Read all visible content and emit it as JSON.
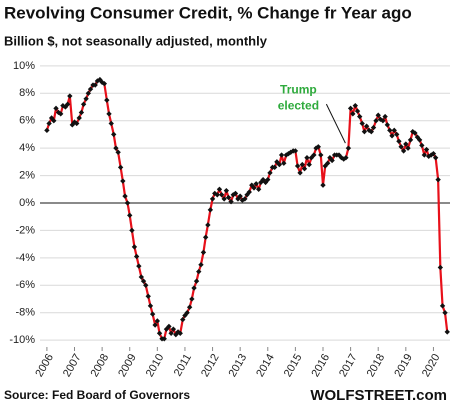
{
  "chart_data": {
    "type": "line",
    "title": "Revolving Consumer Credit, % Change fr Year ago",
    "subtitle": "Billion $, not seasonally adjusted, monthly",
    "source": "Source: Fed Board of Governors",
    "brand": "WOLFSTREET.com",
    "annotation": {
      "text": [
        "Trump",
        "elected"
      ],
      "x": 2016.92,
      "y": 4.0
    },
    "x": [
      2006,
      2006.08,
      2006.17,
      2006.25,
      2006.33,
      2006.42,
      2006.5,
      2006.58,
      2006.67,
      2006.75,
      2006.83,
      2006.92,
      2007,
      2007.08,
      2007.17,
      2007.25,
      2007.33,
      2007.42,
      2007.5,
      2007.58,
      2007.67,
      2007.75,
      2007.83,
      2007.92,
      2008,
      2008.08,
      2008.17,
      2008.25,
      2008.33,
      2008.42,
      2008.5,
      2008.58,
      2008.67,
      2008.75,
      2008.83,
      2008.92,
      2009,
      2009.08,
      2009.17,
      2009.25,
      2009.33,
      2009.42,
      2009.5,
      2009.58,
      2009.67,
      2009.75,
      2009.83,
      2009.92,
      2010,
      2010.08,
      2010.17,
      2010.25,
      2010.33,
      2010.42,
      2010.5,
      2010.58,
      2010.67,
      2010.75,
      2010.83,
      2010.92,
      2011,
      2011.08,
      2011.17,
      2011.25,
      2011.33,
      2011.42,
      2011.5,
      2011.58,
      2011.67,
      2011.75,
      2011.83,
      2011.92,
      2012,
      2012.08,
      2012.17,
      2012.25,
      2012.33,
      2012.42,
      2012.5,
      2012.58,
      2012.67,
      2012.75,
      2012.83,
      2012.92,
      2013,
      2013.08,
      2013.17,
      2013.25,
      2013.33,
      2013.42,
      2013.5,
      2013.58,
      2013.67,
      2013.75,
      2013.83,
      2013.92,
      2014,
      2014.08,
      2014.17,
      2014.25,
      2014.33,
      2014.42,
      2014.5,
      2014.58,
      2014.67,
      2014.75,
      2014.83,
      2014.92,
      2015,
      2015.08,
      2015.17,
      2015.25,
      2015.33,
      2015.42,
      2015.5,
      2015.58,
      2015.67,
      2015.75,
      2015.83,
      2015.92,
      2016,
      2016.08,
      2016.17,
      2016.25,
      2016.33,
      2016.42,
      2016.5,
      2016.58,
      2016.67,
      2016.75,
      2016.83,
      2016.92,
      2017,
      2017.08,
      2017.17,
      2017.25,
      2017.33,
      2017.42,
      2017.5,
      2017.58,
      2017.67,
      2017.75,
      2017.83,
      2017.92,
      2018,
      2018.08,
      2018.17,
      2018.25,
      2018.33,
      2018.42,
      2018.5,
      2018.58,
      2018.67,
      2018.75,
      2018.83,
      2018.92,
      2019,
      2019.08,
      2019.17,
      2019.25,
      2019.33,
      2019.42,
      2019.5,
      2019.58,
      2019.67,
      2019.75,
      2019.83,
      2019.92,
      2020,
      2020.08,
      2020.17,
      2020.25,
      2020.33,
      2020.42,
      2020.5
    ],
    "series": [
      {
        "color": "#e8101a",
        "marker_color": "#111111",
        "values": [
          5.3,
          5.8,
          6.2,
          6.0,
          6.9,
          6.6,
          6.5,
          7.1,
          7.0,
          7.2,
          7.8,
          5.7,
          5.9,
          5.8,
          6.2,
          6.6,
          7.2,
          7.6,
          8.0,
          8.3,
          8.6,
          8.6,
          8.9,
          9.0,
          8.8,
          8.7,
          7.5,
          6.5,
          5.8,
          5.0,
          4.0,
          3.7,
          2.6,
          1.6,
          0.5,
          0.0,
          -0.9,
          -2.0,
          -3.2,
          -3.9,
          -4.6,
          -5.4,
          -5.7,
          -6.0,
          -6.8,
          -7.5,
          -8.1,
          -8.9,
          -8.6,
          -9.5,
          -9.9,
          -9.9,
          -9.2,
          -9.0,
          -9.5,
          -9.2,
          -9.6,
          -9.4,
          -9.5,
          -8.5,
          -8.2,
          -8.0,
          -7.6,
          -7.0,
          -6.2,
          -5.7,
          -5.0,
          -4.5,
          -3.6,
          -2.5,
          -1.6,
          -0.5,
          0.3,
          0.7,
          0.6,
          1.0,
          0.6,
          0.3,
          0.9,
          0.4,
          0.1,
          0.6,
          0.7,
          0.3,
          0.5,
          0.2,
          0.3,
          0.6,
          0.8,
          1.3,
          1.1,
          1.4,
          1.0,
          1.5,
          1.7,
          1.5,
          1.7,
          2.2,
          2.6,
          2.6,
          3.0,
          2.8,
          3.5,
          2.9,
          3.5,
          3.6,
          3.7,
          3.8,
          3.8,
          2.7,
          2.2,
          2.8,
          2.5,
          3.3,
          2.8,
          3.3,
          3.5,
          4.0,
          4.1,
          3.5,
          1.3,
          2.7,
          2.9,
          3.3,
          3.1,
          3.5,
          3.5,
          3.5,
          3.3,
          3.2,
          3.3,
          4.0,
          6.9,
          6.5,
          7.1,
          6.7,
          6.3,
          5.8,
          5.2,
          5.6,
          5.3,
          5.2,
          5.5,
          6.0,
          6.4,
          6.1,
          6.0,
          6.3,
          5.7,
          5.3,
          4.9,
          5.3,
          5.0,
          4.5,
          4.1,
          3.8,
          4.3,
          4.0,
          4.6,
          5.2,
          5.1,
          4.8,
          4.6,
          4.2,
          3.5,
          3.9,
          3.4,
          3.5,
          3.6,
          3.3,
          1.7,
          -4.7,
          -7.5,
          -8.0,
          -9.4
        ]
      }
    ],
    "xlim": [
      2005.75,
      2020.6
    ],
    "xticks": [
      2006,
      2007,
      2008,
      2009,
      2010,
      2011,
      2012,
      2013,
      2014,
      2015,
      2016,
      2017,
      2018,
      2019,
      2020
    ],
    "ylim": [
      -10.5,
      10.5
    ],
    "yticks": [
      {
        "value": -10,
        "label": "-10%"
      },
      {
        "value": -8,
        "label": "-8%"
      },
      {
        "value": -6,
        "label": "-6%"
      },
      {
        "value": -4,
        "label": "-4%"
      },
      {
        "value": -2,
        "label": "-2%"
      },
      {
        "value": 0,
        "label": "0%"
      },
      {
        "value": 2,
        "label": "2%"
      },
      {
        "value": 4,
        "label": "4%"
      },
      {
        "value": 6,
        "label": "6%"
      },
      {
        "value": 8,
        "label": "8%"
      },
      {
        "value": 10,
        "label": "10%"
      }
    ],
    "grid": true
  }
}
